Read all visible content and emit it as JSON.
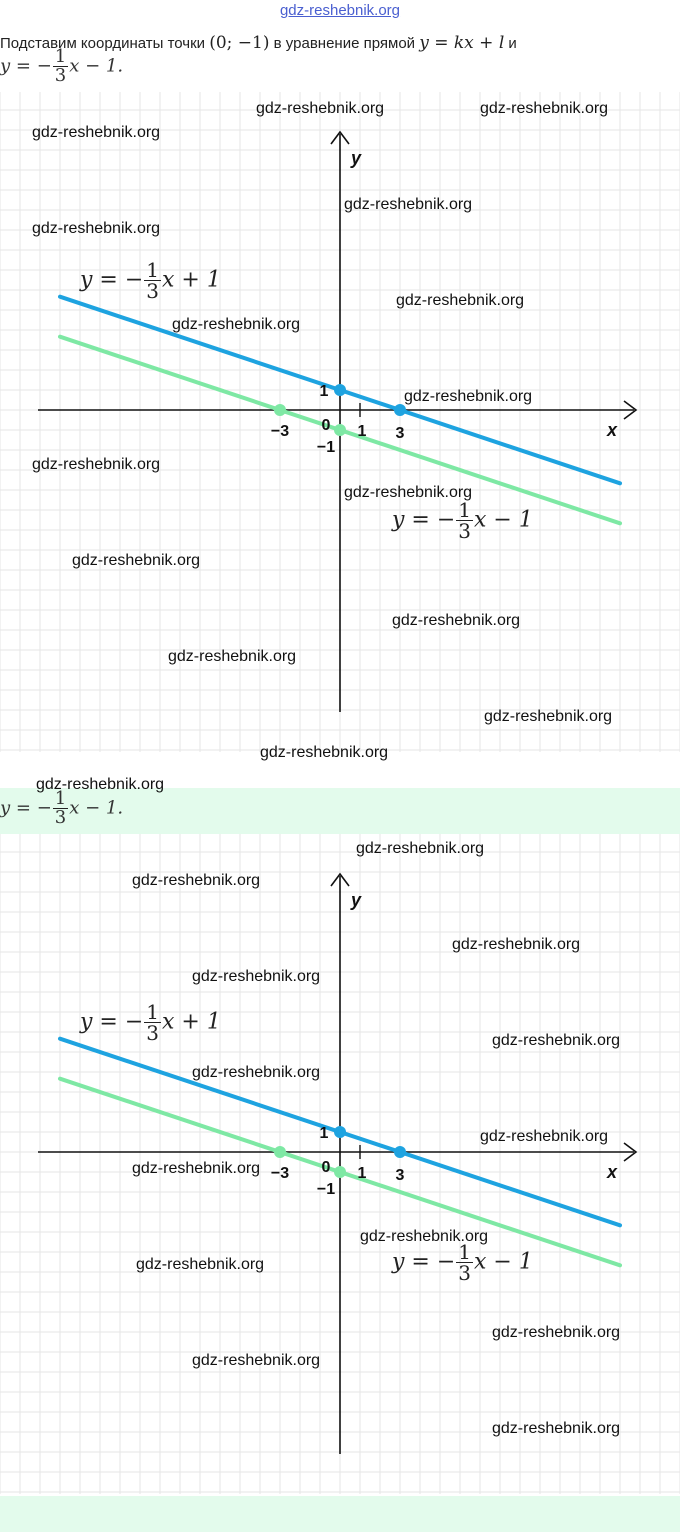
{
  "header": {
    "site_link": "gdz-reshebnik.org"
  },
  "intro": {
    "text_prefix": "Подставим координаты точки ",
    "point": "(0;  −1)",
    "text_middle": " в уравнение прямой ",
    "general_eq": "y = kx + l",
    "text_suffix": " и",
    "eq_lhs": "y = −",
    "eq_num": "1",
    "eq_den": "3",
    "eq_rhs": "x − 1."
  },
  "answer": {
    "eq_lhs": "y = −",
    "eq_num": "1",
    "eq_den": "3",
    "eq_rhs": "x − 1."
  },
  "graph": {
    "axis_x_label": "x",
    "axis_y_label": "y",
    "origin_label": "0",
    "tick_labels": {
      "x_neg3": "−3",
      "x_1": "1",
      "x_3": "3",
      "y_1": "1",
      "y_neg1": "−1"
    },
    "line_blue": {
      "lhs": "y = −",
      "num": "1",
      "den": "3",
      "rhs": "x + 1",
      "color": "#1ea3e0"
    },
    "line_green": {
      "lhs": "y = −",
      "num": "1",
      "den": "3",
      "rhs": "x − 1",
      "color": "#7ee8a4"
    },
    "grid_color": "#e6e6e6"
  },
  "watermark": "gdz-reshebnik.org"
}
